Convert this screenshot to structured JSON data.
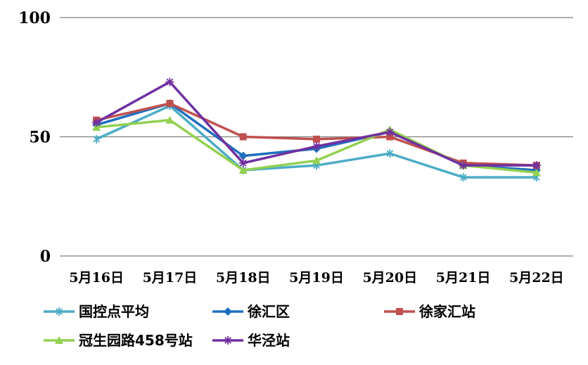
{
  "chart_data": {
    "type": "line",
    "title": "",
    "xlabel": "",
    "ylabel": "",
    "categories": [
      "5月16日",
      "5月17日",
      "5月18日",
      "5月19日",
      "5月20日",
      "5月21日",
      "5月22日"
    ],
    "ylim": [
      0,
      100
    ],
    "yticks": [
      "0",
      "50",
      "100"
    ],
    "grid": true,
    "legend_position": "bottom",
    "series": [
      {
        "name": "国控点平均",
        "color": "#4bacc6",
        "marker": "star",
        "values": [
          49,
          63,
          36,
          38,
          43,
          33,
          33
        ]
      },
      {
        "name": "徐汇区",
        "color": "#1f6fbf",
        "marker": "diamond",
        "values": [
          55,
          64,
          42,
          45,
          52,
          38,
          36
        ]
      },
      {
        "name": "徐家汇站",
        "color": "#c0504d",
        "marker": "square",
        "values": [
          57,
          64,
          50,
          49,
          50,
          39,
          38
        ]
      },
      {
        "name": "冠生园路458号站",
        "color": "#92d050",
        "marker": "triangle",
        "values": [
          54,
          57,
          36,
          40,
          53,
          38,
          35
        ]
      },
      {
        "name": "华泾站",
        "color": "#7030a0",
        "marker": "asterisk",
        "values": [
          56,
          73,
          39,
          46,
          52,
          38,
          38
        ]
      }
    ]
  }
}
